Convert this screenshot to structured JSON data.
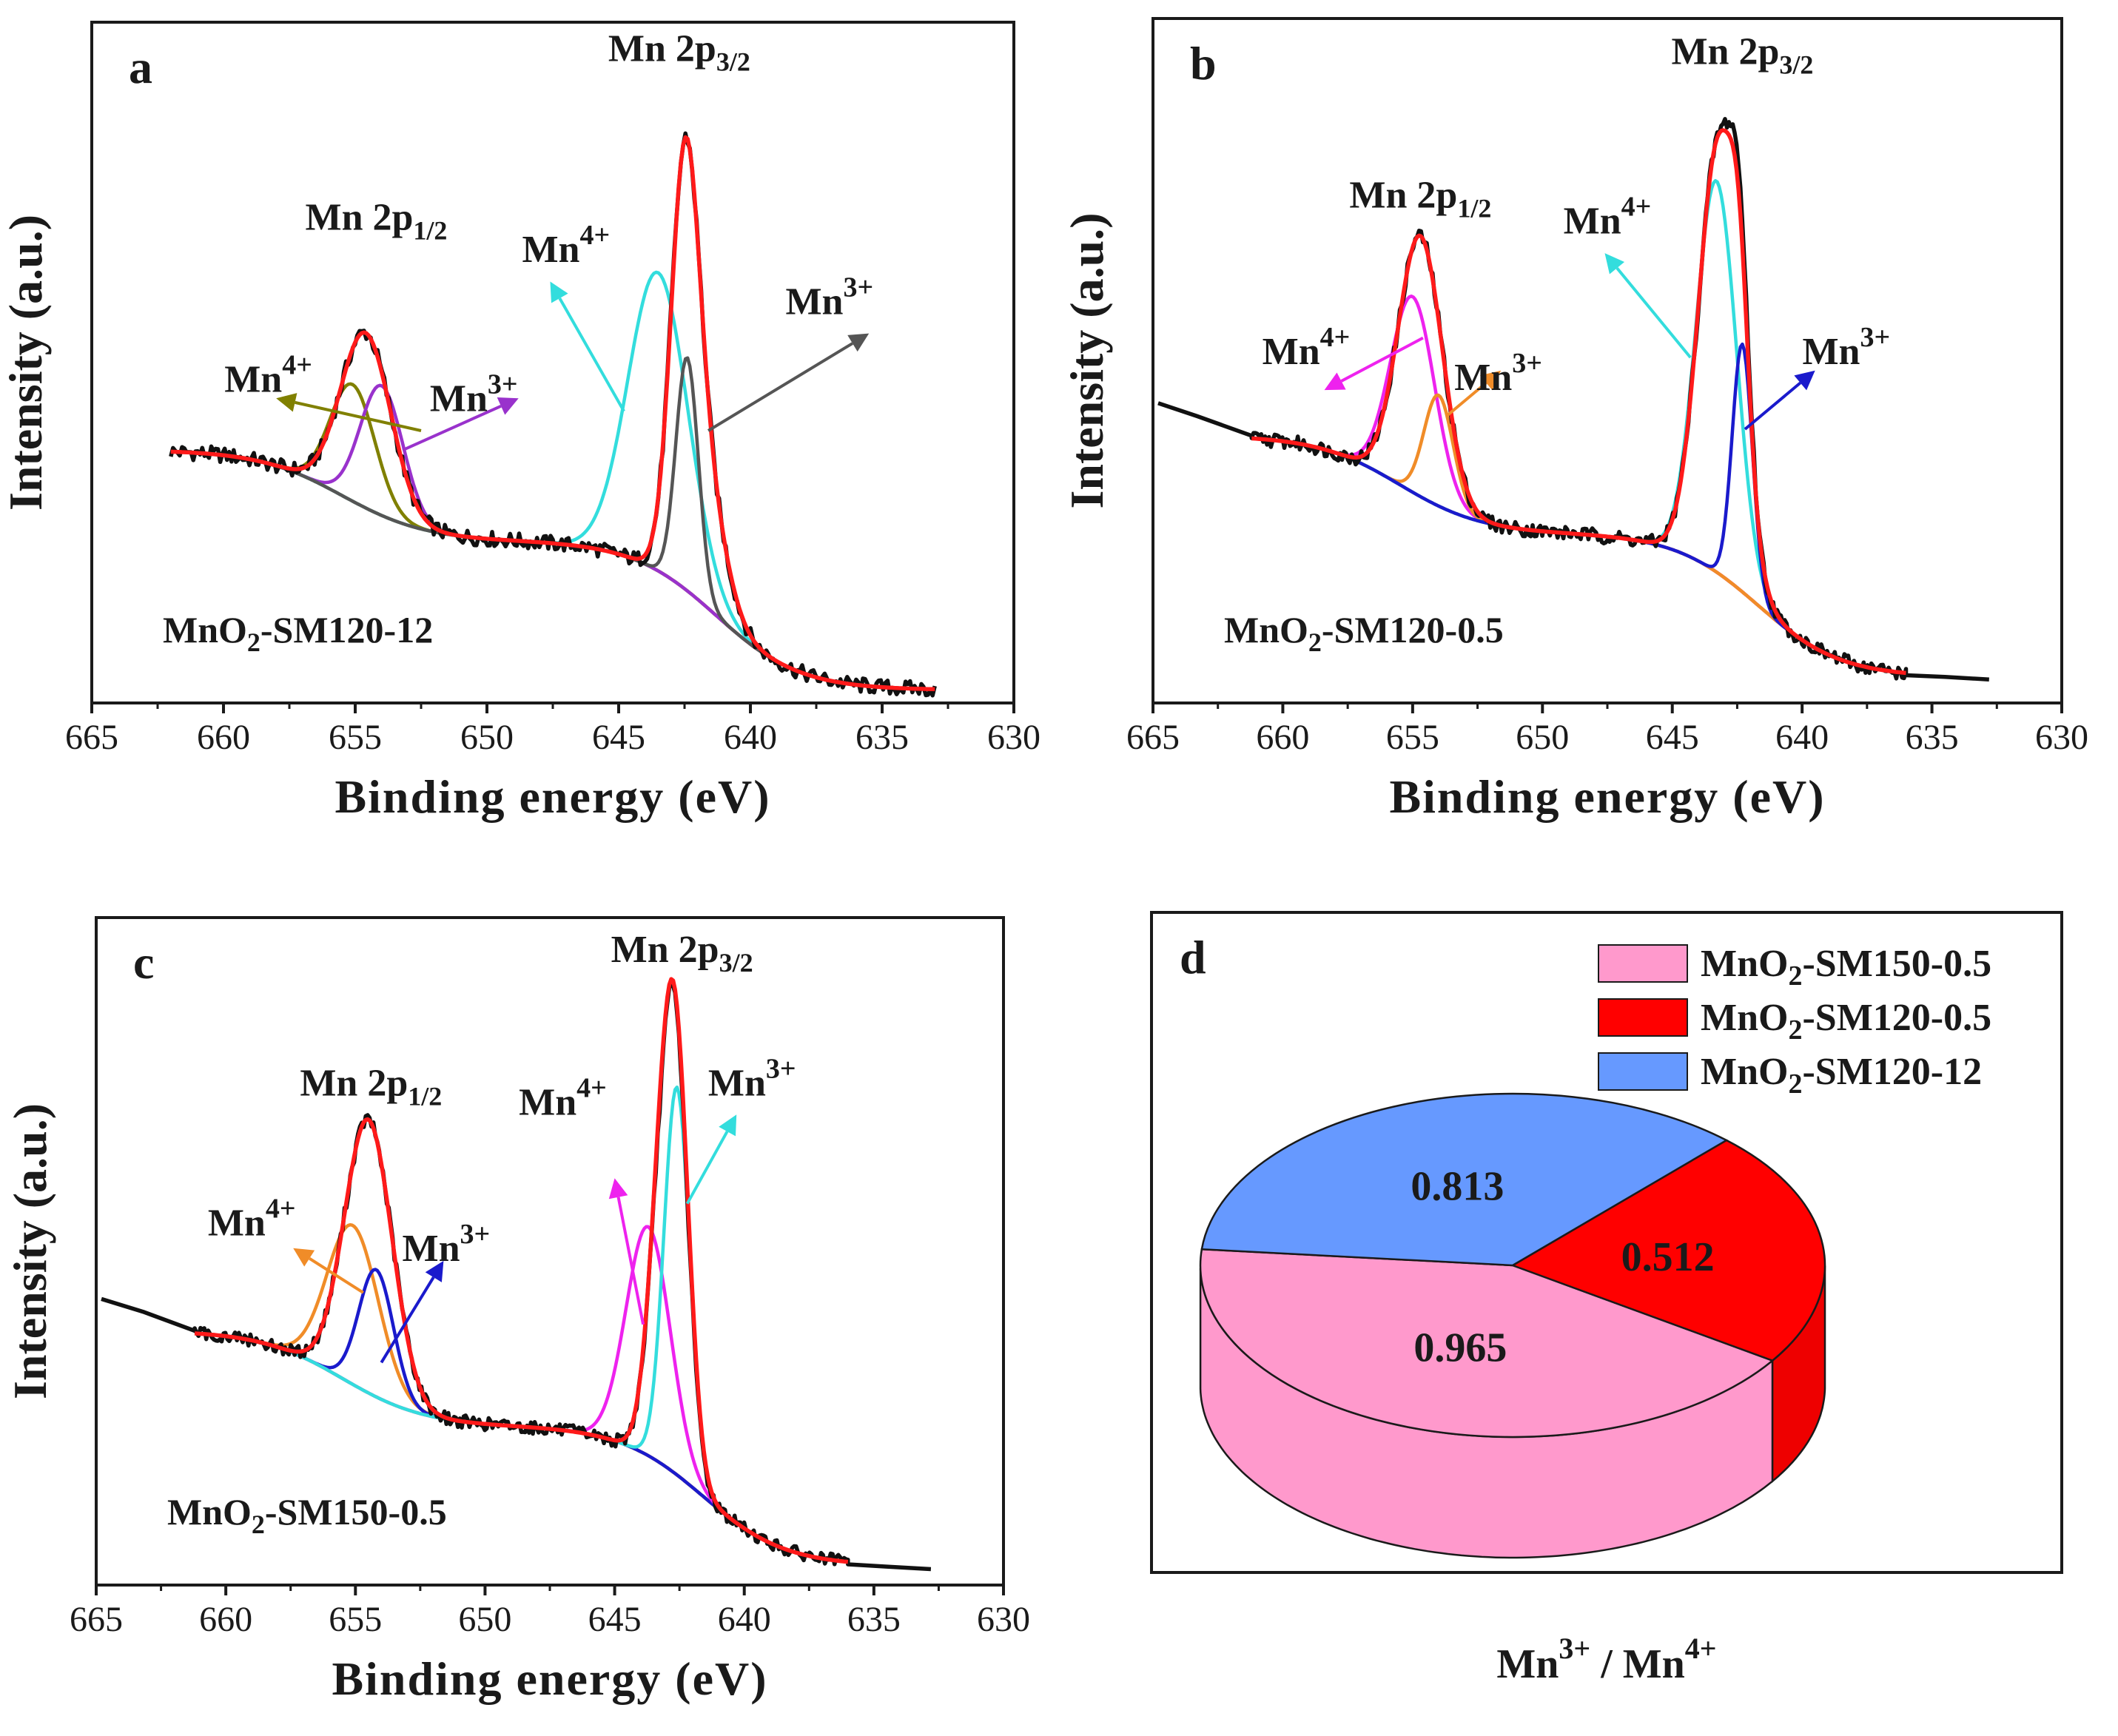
{
  "chart_data": [
    {
      "id": "a",
      "type": "line",
      "panel_letter": "a",
      "xlabel": "Binding energy (eV)",
      "ylabel": "Intensity (a.u.)",
      "sample_label": {
        "base": "MnO",
        "sub": "2",
        "rest": "-SM120-12"
      },
      "xlim": [
        665,
        630
      ],
      "ylim": [
        0,
        1.05
      ],
      "x_ticks": [
        665,
        660,
        655,
        650,
        645,
        640,
        635,
        630
      ],
      "x_range": [
        662,
        633
      ],
      "baseline": {
        "left": 0.39,
        "plateau": 0.25,
        "right": 0.02,
        "step_center": 641.3,
        "step_width": 1.6
      },
      "series": [
        {
          "key": "raw",
          "color": "#111111",
          "noise": 0.012,
          "components": [
            [
              654.6,
              1.35,
              0.27
            ],
            [
              642.5,
              0.75,
              0.56
            ],
            [
              641.8,
              1.1,
              0.2
            ]
          ]
        },
        {
          "key": "envelope",
          "color": "#ff1a1a",
          "components": [
            [
              654.6,
              1.35,
              0.27
            ],
            [
              642.5,
              0.75,
              0.56
            ],
            [
              641.8,
              1.1,
              0.2
            ]
          ]
        },
        {
          "key": "mn4-2p12",
          "color": "#808000",
          "components": [
            [
              655.1,
              1.2,
              0.18
            ]
          ]
        },
        {
          "key": "mn3-2p12",
          "color": "#9932cc",
          "components": [
            [
              654.0,
              1.15,
              0.2
            ]
          ]
        },
        {
          "key": "mn4-2p32",
          "color": "#33dddd",
          "components": [
            [
              643.5,
              1.6,
              0.46
            ]
          ]
        },
        {
          "key": "mn3-2p32",
          "color": "#555555",
          "components": [
            [
              642.4,
              0.6,
              0.36
            ]
          ]
        },
        {
          "key": "background",
          "color": "#f08c28",
          "components": []
        }
      ],
      "annotations": [
        {
          "base": "Mn 2p",
          "sub": "1/2",
          "x": 654.2,
          "y": 0.73
        },
        {
          "base": "Mn 2p",
          "sub": "3/2",
          "x": 642.7,
          "y": 0.99
        },
        {
          "base": "Mn",
          "sup": "4+",
          "x": 658.3,
          "y": 0.48
        },
        {
          "base": "Mn",
          "sup": "3+",
          "x": 650.5,
          "y": 0.45
        },
        {
          "base": "Mn",
          "sup": "4+",
          "x": 647.0,
          "y": 0.68
        },
        {
          "base": "Mn",
          "sup": "3+",
          "x": 637.0,
          "y": 0.6
        }
      ],
      "arrows": [
        {
          "from": [
            652.5,
            0.42
          ],
          "to": [
            658.0,
            0.47
          ],
          "color": "#808000"
        },
        {
          "from": [
            653.2,
            0.39
          ],
          "to": [
            648.8,
            0.47
          ],
          "color": "#9932cc"
        },
        {
          "from": [
            644.8,
            0.45
          ],
          "to": [
            647.6,
            0.65
          ],
          "color": "#33dddd"
        },
        {
          "from": [
            641.6,
            0.42
          ],
          "to": [
            635.5,
            0.57
          ],
          "color": "#555555"
        }
      ]
    },
    {
      "id": "b",
      "type": "line",
      "panel_letter": "b",
      "xlabel": "Binding energy (eV)",
      "ylabel": "Intensity (a.u.)",
      "sample_label": {
        "base": "MnO",
        "sub": "2",
        "rest": "-SM120-0.5"
      },
      "xlim": [
        665,
        630
      ],
      "ylim": [
        0,
        1.05
      ],
      "x_ticks": [
        665,
        660,
        655,
        650,
        645,
        640,
        635,
        630
      ],
      "x_range": [
        661.2,
        636
      ],
      "baseline": {
        "left": 0.41,
        "plateau": 0.26,
        "right": 0.04,
        "step_center": 641.7,
        "step_width": 1.6
      },
      "raw_extension": {
        "left": [
          [
            664.8,
            0.46
          ],
          [
            663.3,
            0.44
          ],
          [
            661.2,
            0.41
          ]
        ],
        "right": [
          [
            636.0,
            0.04
          ],
          [
            634.5,
            0.038
          ],
          [
            632.8,
            0.036
          ]
        ]
      },
      "series": [
        {
          "key": "raw",
          "color": "#111111",
          "noise": 0.011,
          "components": [
            [
              654.7,
              1.2,
              0.4
            ],
            [
              643.2,
              1.1,
              0.66
            ],
            [
              642.4,
              0.5,
              0.24
            ]
          ]
        },
        {
          "key": "envelope",
          "color": "#ff1a1a",
          "components": [
            [
              654.7,
              1.2,
              0.4
            ],
            [
              643.2,
              1.1,
              0.66
            ],
            [
              642.4,
              0.5,
              0.2
            ]
          ]
        },
        {
          "key": "mn4-2p12",
          "color": "#ee22ee",
          "components": [
            [
              655.0,
              1.2,
              0.3
            ]
          ]
        },
        {
          "key": "mn3-2p12",
          "color": "#f08c28",
          "components": [
            [
              654.0,
              0.8,
              0.17
            ]
          ]
        },
        {
          "key": "mn4-2p32",
          "color": "#33dddd",
          "components": [
            [
              643.3,
              1.1,
              0.6
            ]
          ]
        },
        {
          "key": "mn3-2p32",
          "color": "#1a1acc",
          "components": [
            [
              642.3,
              0.55,
              0.38
            ]
          ]
        },
        {
          "key": "background",
          "color": "#f08c28",
          "components": []
        }
      ],
      "annotations": [
        {
          "base": "Mn 2p",
          "sub": "1/2",
          "x": 654.7,
          "y": 0.76
        },
        {
          "base": "Mn 2p",
          "sub": "3/2",
          "x": 642.3,
          "y": 0.98
        },
        {
          "base": "Mn",
          "sup": "4+",
          "x": 659.1,
          "y": 0.52
        },
        {
          "base": "Mn",
          "sup": "3+",
          "x": 651.7,
          "y": 0.48
        },
        {
          "base": "Mn",
          "sup": "4+",
          "x": 647.5,
          "y": 0.72
        },
        {
          "base": "Mn",
          "sup": "3+",
          "x": 638.3,
          "y": 0.52
        }
      ],
      "arrows": [
        {
          "from": [
            654.6,
            0.56
          ],
          "to": [
            658.4,
            0.48
          ],
          "color": "#ee22ee"
        },
        {
          "from": [
            653.7,
            0.44
          ],
          "to": [
            651.6,
            0.51
          ],
          "color": "#f08c28"
        },
        {
          "from": [
            644.3,
            0.53
          ],
          "to": [
            647.6,
            0.69
          ],
          "color": "#33dddd"
        },
        {
          "from": [
            642.2,
            0.42
          ],
          "to": [
            639.5,
            0.51
          ],
          "color": "#1a1acc"
        }
      ]
    },
    {
      "id": "c",
      "type": "line",
      "panel_letter": "c",
      "xlabel": "Binding energy (eV)",
      "ylabel": "Intensity (a.u.)",
      "sample_label": {
        "base": "MnO",
        "sub": "2",
        "rest": "-SM150-0.5"
      },
      "xlim": [
        665,
        630
      ],
      "ylim": [
        0,
        1.05
      ],
      "x_ticks": [
        665,
        660,
        655,
        650,
        645,
        640,
        635,
        630
      ],
      "x_range": [
        661.2,
        636
      ],
      "baseline": {
        "left": 0.4,
        "plateau": 0.25,
        "right": 0.03,
        "step_center": 641.6,
        "step_width": 1.6
      },
      "raw_extension": {
        "left": [
          [
            664.8,
            0.45
          ],
          [
            663.2,
            0.43
          ],
          [
            661.2,
            0.4
          ]
        ],
        "right": [
          [
            636.0,
            0.03
          ],
          [
            634.5,
            0.027
          ],
          [
            632.8,
            0.025
          ]
        ]
      },
      "series": [
        {
          "key": "raw",
          "color": "#111111",
          "noise": 0.01,
          "components": [
            [
              654.5,
              1.3,
              0.43
            ],
            [
              643.2,
              0.75,
              0.34
            ],
            [
              642.6,
              0.7,
              0.55
            ]
          ]
        },
        {
          "key": "envelope",
          "color": "#ff1a1a",
          "components": [
            [
              654.5,
              1.3,
              0.43
            ],
            [
              643.2,
              0.75,
              0.34
            ],
            [
              642.6,
              0.72,
              0.56
            ]
          ]
        },
        {
          "key": "mn4-2p12",
          "color": "#f08c28",
          "components": [
            [
              655.1,
              1.4,
              0.25
            ]
          ]
        },
        {
          "key": "mn3-2p12",
          "color": "#1a1acc",
          "components": [
            [
              654.2,
              0.95,
              0.2
            ]
          ]
        },
        {
          "key": "mn4-2p32",
          "color": "#ee22ee",
          "components": [
            [
              643.7,
              1.2,
              0.36
            ]
          ]
        },
        {
          "key": "mn3-2p32",
          "color": "#33dddd",
          "components": [
            [
              642.6,
              0.7,
              0.61
            ]
          ]
        },
        {
          "key": "background",
          "color": "#f08c28",
          "components": []
        }
      ],
      "annotations": [
        {
          "base": "Mn 2p",
          "sub": "1/2",
          "x": 654.4,
          "y": 0.77
        },
        {
          "base": "Mn 2p",
          "sub": "3/2",
          "x": 642.4,
          "y": 0.98
        },
        {
          "base": "Mn",
          "sup": "4+",
          "x": 659.0,
          "y": 0.55
        },
        {
          "base": "Mn",
          "sup": "3+",
          "x": 651.5,
          "y": 0.51
        },
        {
          "base": "Mn",
          "sup": "4+",
          "x": 647.0,
          "y": 0.74
        },
        {
          "base": "Mn",
          "sup": "3+",
          "x": 639.7,
          "y": 0.77
        }
      ],
      "arrows": [
        {
          "from": [
            654.7,
            0.46
          ],
          "to": [
            657.4,
            0.53
          ],
          "color": "#f08c28"
        },
        {
          "from": [
            654.0,
            0.35
          ],
          "to": [
            651.6,
            0.51
          ],
          "color": "#1a1acc"
        },
        {
          "from": [
            643.9,
            0.41
          ],
          "to": [
            645.0,
            0.64
          ],
          "color": "#ee22ee"
        },
        {
          "from": [
            642.2,
            0.6
          ],
          "to": [
            640.3,
            0.74
          ],
          "color": "#33dddd"
        }
      ]
    },
    {
      "id": "d",
      "type": "pie",
      "panel_letter": "d",
      "xlabel": {
        "base": "Mn",
        "sup1": "3+",
        "sep": " / Mn",
        "sup2": "4+"
      },
      "slices": [
        {
          "label": "MnO2-SM150-0.5",
          "legend": {
            "base": "MnO",
            "sub": "2",
            "rest": "-SM150-0.5"
          },
          "value": 0.965,
          "display": "0.965",
          "color": "#ff99cc",
          "side_color": "#ff99cc"
        },
        {
          "label": "MnO2-SM120-0.5",
          "legend": {
            "base": "MnO",
            "sub": "2",
            "rest": "-SM120-0.5"
          },
          "value": 0.512,
          "display": "0.512",
          "color": "#ff0000",
          "side_color": "#ee0000"
        },
        {
          "label": "MnO2-SM120-12",
          "legend": {
            "base": "MnO",
            "sub": "2",
            "rest": "-SM120-12"
          },
          "value": 0.813,
          "display": "0.813",
          "color": "#6699ff",
          "side_color": "#5a88ee"
        }
      ]
    }
  ]
}
